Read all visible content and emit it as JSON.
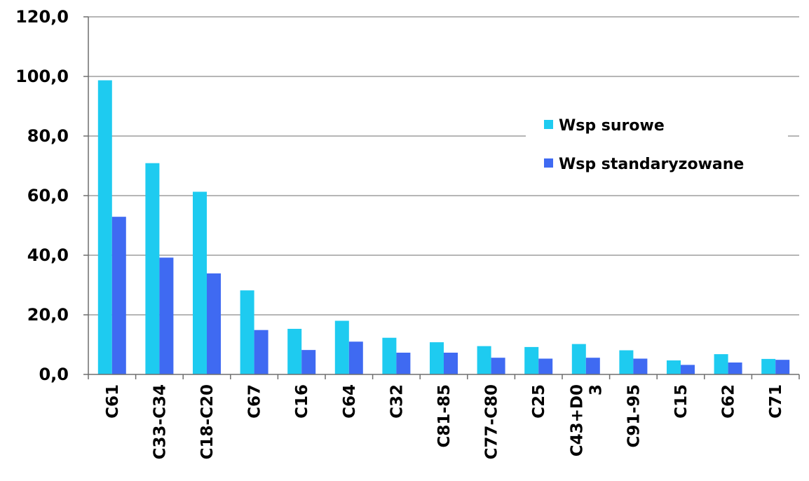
{
  "chart_data": {
    "type": "bar",
    "categories": [
      "C61",
      "C33-C34",
      "C18-C20",
      "C67",
      "C16",
      "C64",
      "C32",
      "C81-85",
      "C77-C80",
      "C25",
      "C43+D03",
      "C91-95",
      "C15",
      "C62",
      "C71"
    ],
    "category_label_lines": [
      [
        "C61"
      ],
      [
        "C33-C34"
      ],
      [
        "C18-C20"
      ],
      [
        "C67"
      ],
      [
        "C16"
      ],
      [
        "C64"
      ],
      [
        "C32"
      ],
      [
        "C81-85"
      ],
      [
        "C77-C80"
      ],
      [
        "C25"
      ],
      [
        "C43+D0",
        "3"
      ],
      [
        "C91-95"
      ],
      [
        "C15"
      ],
      [
        "C62"
      ],
      [
        "C71"
      ]
    ],
    "series": [
      {
        "name": "Wsp surowe",
        "color": "#1ECBF0",
        "values": [
          98.7,
          70.9,
          61.3,
          28.2,
          15.3,
          18.0,
          12.3,
          10.8,
          9.5,
          9.2,
          10.2,
          8.1,
          4.7,
          6.8,
          5.2
        ]
      },
      {
        "name": "Wsp standaryzowane",
        "color": "#3F6AF2",
        "values": [
          52.9,
          39.2,
          33.9,
          14.9,
          8.2,
          11.0,
          7.3,
          7.3,
          5.6,
          5.3,
          5.6,
          5.3,
          3.2,
          4.0,
          4.9
        ]
      }
    ],
    "ylim": [
      0,
      120
    ],
    "yticks": [
      0,
      20,
      40,
      60,
      80,
      100,
      120
    ],
    "ytick_labels": [
      "0,0",
      "20,0",
      "40,0",
      "60,0",
      "80,0",
      "100,0",
      "120,0"
    ],
    "grid": true,
    "legend_position": "right",
    "title": "",
    "xlabel": "",
    "ylabel": ""
  }
}
